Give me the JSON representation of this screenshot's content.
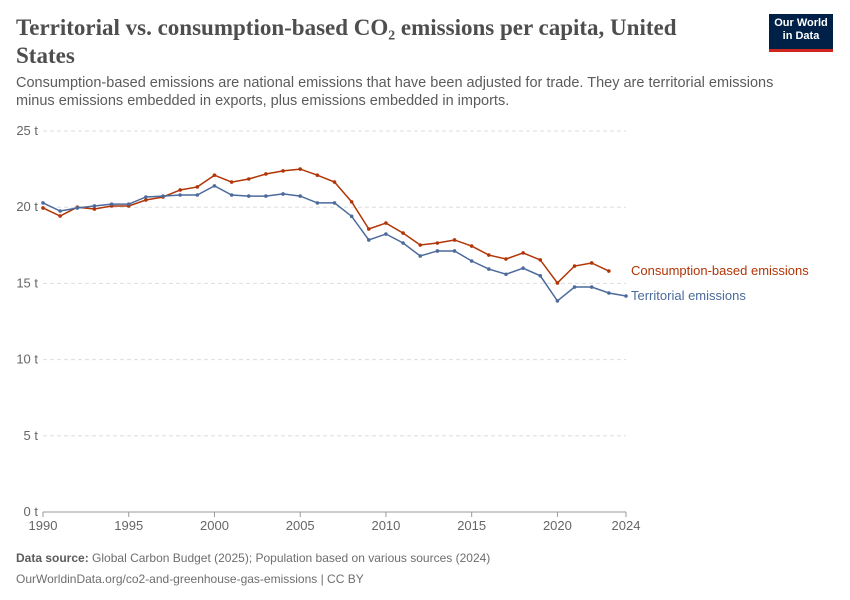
{
  "title": "Territorial vs. consumption-based CO₂ emissions per capita, United States",
  "subtitle": "Consumption-based emissions are national emissions that have been adjusted for trade. They are territorial emissions minus emissions embedded in exports, plus emissions embedded in imports.",
  "logo": {
    "line1": "Our World",
    "line2": "in Data"
  },
  "footer": {
    "source_label": "Data source:",
    "source": "Global Carbon Budget (2025); Population based on various sources (2024)",
    "url": "OurWorldinData.org/co2-and-greenhouse-gas-emissions | CC BY"
  },
  "chart_data": {
    "type": "line",
    "x": [
      1990,
      1991,
      1992,
      1993,
      1994,
      1995,
      1996,
      1997,
      1998,
      1999,
      2000,
      2001,
      2002,
      2003,
      2004,
      2005,
      2006,
      2007,
      2008,
      2009,
      2010,
      2011,
      2012,
      2013,
      2014,
      2015,
      2016,
      2017,
      2018,
      2019,
      2020,
      2021,
      2022,
      2023,
      2024
    ],
    "xticks": [
      "1990",
      "1995",
      "2000",
      "2005",
      "2010",
      "2015",
      "2020",
      "2024"
    ],
    "yticks": [
      "0 t",
      "5 t",
      "10 t",
      "15 t",
      "20 t",
      "25 t"
    ],
    "ylim": [
      0,
      25
    ],
    "xlim": [
      1990,
      2024
    ],
    "grid": "horizontal dashed",
    "legend": "inline-right",
    "series": [
      {
        "name": "Consumption-based emissions",
        "color": "#b13507",
        "values": [
          19.95,
          19.42,
          20.0,
          19.88,
          20.08,
          20.08,
          20.47,
          20.67,
          21.13,
          21.33,
          22.1,
          21.65,
          21.85,
          22.18,
          22.38,
          22.5,
          22.1,
          21.65,
          20.35,
          18.57,
          18.96,
          18.3,
          17.52,
          17.65,
          17.85,
          17.45,
          16.86,
          16.6,
          17.0,
          16.54,
          15.03,
          16.14,
          16.34,
          15.81,
          null
        ]
      },
      {
        "name": "Territorial emissions",
        "color": "#4c6a9c",
        "values": [
          20.28,
          19.75,
          19.95,
          20.08,
          20.2,
          20.2,
          20.67,
          20.73,
          20.8,
          20.8,
          21.4,
          20.8,
          20.73,
          20.73,
          20.87,
          20.73,
          20.28,
          20.28,
          19.4,
          17.85,
          18.24,
          17.65,
          16.8,
          17.13,
          17.13,
          16.47,
          15.94,
          15.6,
          16.0,
          15.5,
          13.85,
          14.76,
          14.76,
          14.37,
          14.17
        ]
      }
    ]
  }
}
